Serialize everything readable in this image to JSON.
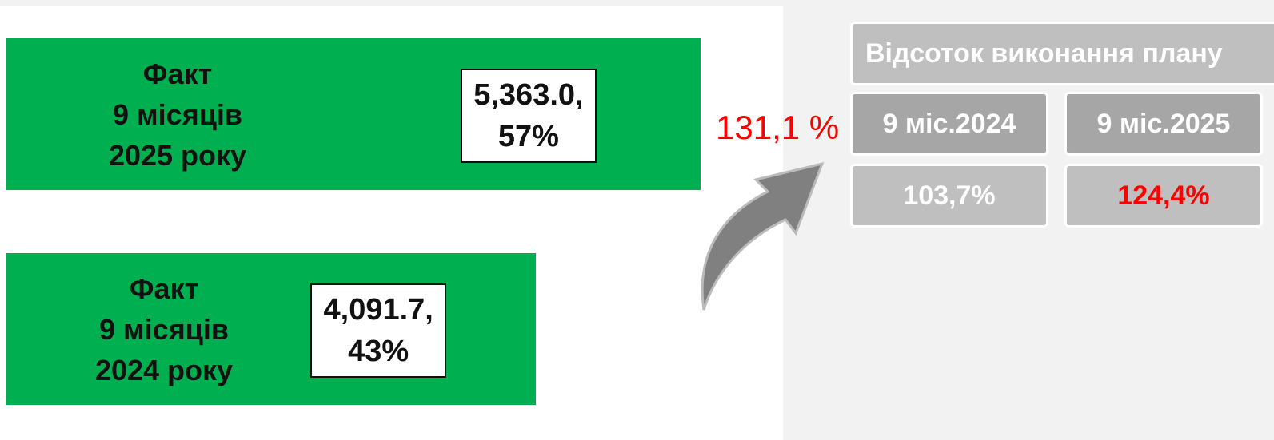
{
  "chart_data": {
    "type": "bar",
    "orientation": "horizontal",
    "categories": [
      "Факт\n9 місяців\n2025 року",
      "Факт\n9 місяців\n2024 року"
    ],
    "values": [
      5363.0,
      4091.7
    ],
    "value_labels": [
      "5,363.0,\n57%",
      "4,091.7,\n43%"
    ],
    "color": "#00b050",
    "xlim": [
      0,
      6000
    ],
    "annotation": "131,1 %"
  },
  "table": {
    "title": "Відсоток виконання плану",
    "headers": [
      "9 міс.2024",
      "9 міс.2025"
    ],
    "rows": [
      [
        "103,7%",
        "124,4%"
      ]
    ]
  }
}
